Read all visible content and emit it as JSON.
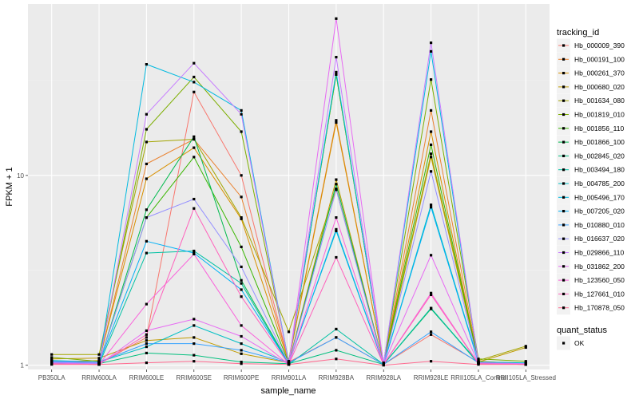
{
  "chart_data": {
    "type": "line",
    "xlabel": "sample_name",
    "ylabel": "FPKM + 1",
    "y_scale": "log10",
    "ylim": [
      0.95,
      80
    ],
    "y_ticks": [
      {
        "value": 1,
        "label": "1"
      },
      {
        "value": 10,
        "label": "10"
      }
    ],
    "grid": true,
    "legend_position": "right",
    "categories": [
      "PB350LA",
      "RRIM600LA",
      "RRIM600LE",
      "RRIM600SE",
      "RRIM600PE",
      "RRIM901LA",
      "RRIM928BA",
      "RRIM928LA",
      "RRIM928LE",
      "RRII105LA_Control",
      "RRII105LA_Stressed"
    ],
    "legend_title": "tracking_id",
    "series": [
      {
        "name": "Hb_000009_390",
        "color": "#F8766D",
        "values": [
          1.03,
          1.02,
          1.4,
          27.5,
          10.0,
          1.04,
          1.4,
          1.01,
          1.45,
          1.04,
          1.01
        ]
      },
      {
        "name": "Hb_000191_100",
        "color": "#EA8331",
        "values": [
          1.05,
          1.04,
          11.5,
          15.5,
          7.7,
          1.05,
          19.5,
          1.02,
          22.0,
          1.05,
          1.02
        ]
      },
      {
        "name": "Hb_000261_370",
        "color": "#D89000",
        "values": [
          1.04,
          1.06,
          9.6,
          14.0,
          5.9,
          1.04,
          19.0,
          1.02,
          17.0,
          1.03,
          1.02
        ]
      },
      {
        "name": "Hb_000680_020",
        "color": "#C09B00",
        "values": [
          1.08,
          1.09,
          1.35,
          1.4,
          1.15,
          1.03,
          9.5,
          1.01,
          12.5,
          1.04,
          1.24
        ]
      },
      {
        "name": "Hb_001634_080",
        "color": "#A3A500",
        "values": [
          1.14,
          1.14,
          15.0,
          15.5,
          6.0,
          1.5,
          8.5,
          1.01,
          13.0,
          1.06,
          1.26
        ]
      },
      {
        "name": "Hb_001819_010",
        "color": "#7CAE00",
        "values": [
          1.1,
          1.05,
          17.5,
          33.0,
          17.0,
          1.05,
          34.0,
          1.03,
          32.0,
          1.08,
          1.05
        ]
      },
      {
        "name": "Hb_001856_110",
        "color": "#39B600",
        "values": [
          1.05,
          1.03,
          6.0,
          12.5,
          4.2,
          1.03,
          34.0,
          1.02,
          14.5,
          1.04,
          1.03
        ]
      },
      {
        "name": "Hb_001866_100",
        "color": "#00BB4E",
        "values": [
          1.03,
          1.02,
          6.6,
          16.0,
          2.8,
          1.02,
          9.0,
          1.01,
          1.98,
          1.03,
          1.02
        ]
      },
      {
        "name": "Hb_002845_020",
        "color": "#00BF7D",
        "values": [
          1.04,
          1.02,
          1.16,
          1.13,
          1.04,
          1.02,
          1.2,
          1.01,
          2.0,
          1.03,
          1.02
        ]
      },
      {
        "name": "Hb_003494_180",
        "color": "#00C1A3",
        "values": [
          1.02,
          1.01,
          3.9,
          4.0,
          2.7,
          1.01,
          1.55,
          1.01,
          2.0,
          1.02,
          1.01
        ]
      },
      {
        "name": "Hb_004785_200",
        "color": "#00BFC4",
        "values": [
          1.06,
          1.04,
          1.25,
          1.62,
          1.3,
          1.03,
          5.1,
          1.01,
          7.0,
          1.04,
          1.03
        ]
      },
      {
        "name": "Hb_005496_170",
        "color": "#00BAE0",
        "values": [
          1.03,
          1.02,
          38.5,
          31.0,
          22.0,
          1.03,
          35.0,
          1.02,
          45.0,
          1.03,
          1.02
        ]
      },
      {
        "name": "Hb_007205_020",
        "color": "#00B0F6",
        "values": [
          1.04,
          1.03,
          4.5,
          3.9,
          2.5,
          1.02,
          5.2,
          1.01,
          6.8,
          1.03,
          1.02
        ]
      },
      {
        "name": "Hb_010880_010",
        "color": "#35A2FF",
        "values": [
          1.05,
          1.04,
          1.3,
          1.3,
          1.2,
          1.03,
          1.4,
          1.01,
          1.5,
          1.03,
          1.02
        ]
      },
      {
        "name": "Hb_016637_020",
        "color": "#9590FF",
        "values": [
          1.04,
          1.03,
          6.0,
          7.5,
          3.3,
          1.02,
          8.4,
          1.01,
          10.5,
          1.03,
          1.02
        ]
      },
      {
        "name": "Hb_029866_110",
        "color": "#C77CFF",
        "values": [
          1.03,
          1.02,
          21.0,
          39.0,
          21.0,
          1.02,
          42.0,
          1.02,
          50.0,
          1.03,
          1.02
        ]
      },
      {
        "name": "Hb_031862_200",
        "color": "#E76BF3",
        "values": [
          1.02,
          1.01,
          1.52,
          1.75,
          1.42,
          1.01,
          67.0,
          1.01,
          3.8,
          1.02,
          1.01
        ]
      },
      {
        "name": "Hb_123560_050",
        "color": "#FA62DB",
        "values": [
          1.02,
          1.01,
          2.1,
          3.85,
          1.62,
          1.01,
          6.0,
          1.01,
          2.4,
          1.02,
          1.01
        ]
      },
      {
        "name": "Hb_127661_010",
        "color": "#FF62BC",
        "values": [
          1.02,
          1.01,
          1.45,
          6.7,
          2.3,
          1.01,
          3.7,
          1.01,
          2.35,
          1.02,
          1.01
        ]
      },
      {
        "name": "Hb_170878_050",
        "color": "#FF6C91",
        "values": [
          1.01,
          1.01,
          1.03,
          1.05,
          1.02,
          1.01,
          1.08,
          1.0,
          1.05,
          1.01,
          1.01
        ]
      }
    ],
    "point_legend": {
      "title": "quant_status",
      "entries": [
        {
          "label": "OK"
        }
      ]
    }
  }
}
